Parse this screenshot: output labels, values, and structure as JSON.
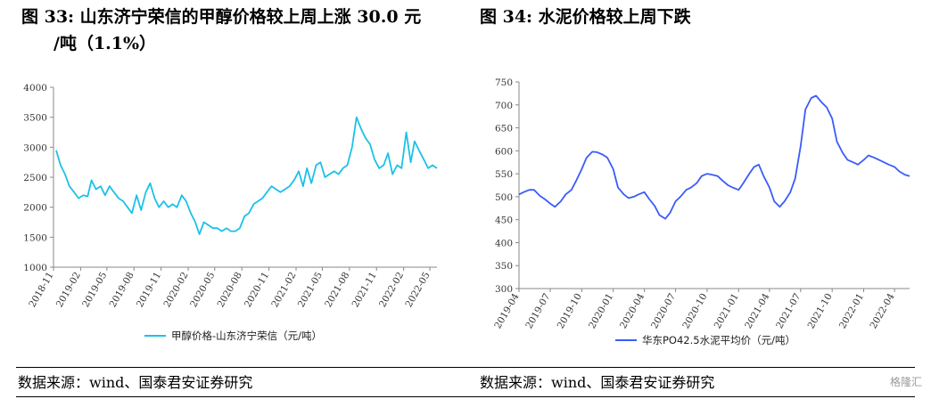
{
  "figure1": {
    "title_line1": "图  33: 山东济宁荣信的甲醇价格较上周上涨 30.0 元",
    "title_line2": "/吨（1.1%）",
    "source": "数据来源：wind、国泰君安证券研究"
  },
  "figure2": {
    "title": "图  34:  水泥价格较上周下跌",
    "source": "数据来源：wind、国泰君安证券研究"
  },
  "watermark": "格隆汇",
  "chart_data": [
    {
      "type": "line",
      "title": "",
      "xlabel": "",
      "ylabel": "",
      "ylim": [
        1000,
        4000
      ],
      "yticks": [
        1000,
        1500,
        2000,
        2500,
        3000,
        3500,
        4000
      ],
      "xticks": [
        "2018-11",
        "2019-02",
        "2019-05",
        "2019-08",
        "2019-11",
        "2020-02",
        "2020-05",
        "2020-08",
        "2020-11",
        "2021-02",
        "2021-05",
        "2021-08",
        "2021-11",
        "2022-02",
        "2022-05"
      ],
      "legend_position": "bottom",
      "color": "#1cc1e8",
      "series": [
        {
          "name": "甲醇价格-山东济宁荣信（元/吨）",
          "x": [
            "2018-11-10",
            "2018-11-25",
            "2018-12-10",
            "2018-12-25",
            "2019-01-10",
            "2019-01-25",
            "2019-02-10",
            "2019-02-25",
            "2019-03-10",
            "2019-03-25",
            "2019-04-10",
            "2019-04-25",
            "2019-05-10",
            "2019-05-25",
            "2019-06-10",
            "2019-06-25",
            "2019-07-10",
            "2019-07-25",
            "2019-08-10",
            "2019-08-25",
            "2019-09-10",
            "2019-09-25",
            "2019-10-10",
            "2019-10-25",
            "2019-11-10",
            "2019-11-25",
            "2019-12-10",
            "2019-12-25",
            "2020-01-10",
            "2020-01-25",
            "2020-02-10",
            "2020-02-25",
            "2020-03-10",
            "2020-03-25",
            "2020-04-10",
            "2020-04-25",
            "2020-05-10",
            "2020-05-25",
            "2020-06-10",
            "2020-06-25",
            "2020-07-10",
            "2020-07-25",
            "2020-08-10",
            "2020-08-25",
            "2020-09-10",
            "2020-09-25",
            "2020-10-10",
            "2020-10-25",
            "2020-11-10",
            "2020-11-25",
            "2020-12-10",
            "2020-12-25",
            "2021-01-10",
            "2021-01-25",
            "2021-02-10",
            "2021-02-25",
            "2021-03-10",
            "2021-03-25",
            "2021-04-10",
            "2021-04-25",
            "2021-05-10",
            "2021-05-25",
            "2021-06-10",
            "2021-06-25",
            "2021-07-10",
            "2021-07-25",
            "2021-08-10",
            "2021-08-25",
            "2021-09-10",
            "2021-09-25",
            "2021-10-10",
            "2021-10-25",
            "2021-11-10",
            "2021-11-25",
            "2021-12-10",
            "2021-12-25",
            "2022-01-10",
            "2022-01-25",
            "2022-02-10",
            "2022-02-25",
            "2022-03-10",
            "2022-03-25",
            "2022-04-10",
            "2022-04-25",
            "2022-05-10",
            "2022-05-25"
          ],
          "values": [
            2950,
            2700,
            2550,
            2350,
            2250,
            2150,
            2200,
            2180,
            2450,
            2300,
            2350,
            2200,
            2350,
            2250,
            2150,
            2100,
            2000,
            1900,
            2200,
            1950,
            2250,
            2400,
            2150,
            2000,
            2100,
            2000,
            2050,
            2000,
            2200,
            2100,
            1900,
            1750,
            1550,
            1750,
            1700,
            1650,
            1650,
            1600,
            1650,
            1600,
            1600,
            1650,
            1850,
            1900,
            2050,
            2100,
            2150,
            2250,
            2350,
            2300,
            2250,
            2300,
            2350,
            2450,
            2600,
            2350,
            2650,
            2400,
            2700,
            2750,
            2500,
            2550,
            2600,
            2550,
            2650,
            2700,
            3000,
            3500,
            3300,
            3150,
            3050,
            2800,
            2650,
            2700,
            2900,
            2550,
            2700,
            2650,
            3250,
            2750,
            3100,
            2950,
            2800,
            2650,
            2700,
            2650
          ]
        }
      ]
    },
    {
      "type": "line",
      "title": "",
      "xlabel": "",
      "ylabel": "",
      "ylim": [
        300,
        750
      ],
      "yticks": [
        300,
        350,
        400,
        450,
        500,
        550,
        600,
        650,
        700,
        750
      ],
      "xticks": [
        "2019-04",
        "2019-07",
        "2019-10",
        "2020-01",
        "2020-04",
        "2020-07",
        "2020-10",
        "2021-01",
        "2021-04",
        "2021-07",
        "2021-10",
        "2022-01",
        "2022-04"
      ],
      "legend_position": "bottom",
      "color": "#3b5bfa",
      "series": [
        {
          "name": "华东PO42.5水泥平均价（元/吨）",
          "x": [
            "2019-04-01",
            "2019-04-15",
            "2019-05-01",
            "2019-05-15",
            "2019-06-01",
            "2019-06-15",
            "2019-07-01",
            "2019-07-15",
            "2019-08-01",
            "2019-08-15",
            "2019-09-01",
            "2019-09-15",
            "2019-10-01",
            "2019-10-15",
            "2019-11-01",
            "2019-11-15",
            "2019-12-01",
            "2019-12-15",
            "2020-01-01",
            "2020-01-15",
            "2020-02-01",
            "2020-02-15",
            "2020-03-01",
            "2020-03-15",
            "2020-04-01",
            "2020-04-15",
            "2020-05-01",
            "2020-05-15",
            "2020-06-01",
            "2020-06-15",
            "2020-07-01",
            "2020-07-15",
            "2020-08-01",
            "2020-08-15",
            "2020-09-01",
            "2020-09-15",
            "2020-10-01",
            "2020-10-15",
            "2020-11-01",
            "2020-11-15",
            "2020-12-01",
            "2020-12-15",
            "2021-01-01",
            "2021-01-15",
            "2021-02-01",
            "2021-02-15",
            "2021-03-01",
            "2021-03-15",
            "2021-04-01",
            "2021-04-15",
            "2021-05-01",
            "2021-05-15",
            "2021-06-01",
            "2021-06-15",
            "2021-07-01",
            "2021-07-15",
            "2021-08-01",
            "2021-08-15",
            "2021-09-01",
            "2021-09-15",
            "2021-10-01",
            "2021-10-15",
            "2021-11-01",
            "2021-11-15",
            "2021-12-01",
            "2021-12-15",
            "2022-01-01",
            "2022-01-15",
            "2022-02-01",
            "2022-02-15",
            "2022-03-01",
            "2022-03-15",
            "2022-04-01",
            "2022-04-15",
            "2022-05-01",
            "2022-05-15"
          ],
          "values": [
            505,
            510,
            515,
            515,
            502,
            495,
            485,
            478,
            490,
            505,
            515,
            535,
            560,
            585,
            598,
            597,
            592,
            585,
            560,
            520,
            505,
            497,
            500,
            505,
            510,
            495,
            480,
            460,
            452,
            465,
            490,
            500,
            515,
            520,
            530,
            545,
            550,
            548,
            545,
            535,
            525,
            520,
            515,
            530,
            550,
            565,
            570,
            545,
            520,
            490,
            478,
            490,
            510,
            540,
            610,
            690,
            715,
            720,
            705,
            695,
            670,
            620,
            595,
            580,
            575,
            570,
            580,
            590,
            585,
            580,
            575,
            570,
            565,
            555,
            548,
            545
          ]
        }
      ]
    }
  ]
}
